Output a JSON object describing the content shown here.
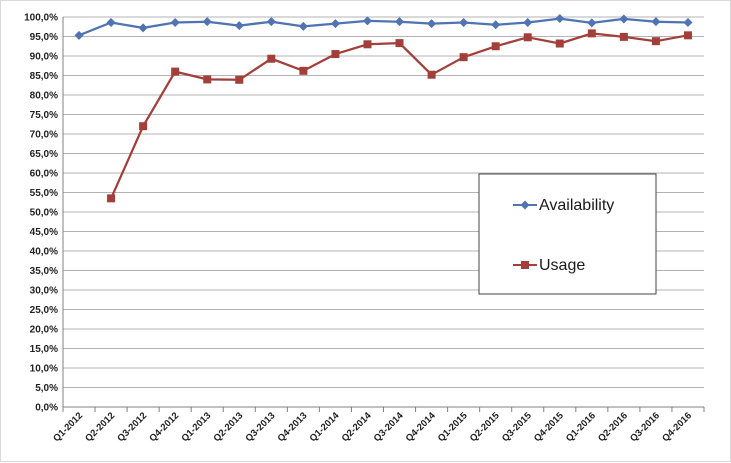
{
  "chart_data": {
    "type": "line",
    "title": "",
    "xlabel": "",
    "ylabel": "",
    "ylim": [
      0,
      100
    ],
    "y_tick_step": 5,
    "y_tick_labels": [
      "0,0%",
      "5,0%",
      "10,0%",
      "15,0%",
      "20,0%",
      "25,0%",
      "30,0%",
      "35,0%",
      "40,0%",
      "45,0%",
      "50,0%",
      "55,0%",
      "60,0%",
      "65,0%",
      "70,0%",
      "75,0%",
      "80,0%",
      "85,0%",
      "90,0%",
      "95,0%",
      "100,0%"
    ],
    "grid": true,
    "legend_position": "right, inside plot",
    "categories": [
      "Q1-2012",
      "Q2-2012",
      "Q3-2012",
      "Q4-2012",
      "Q1-2013",
      "Q2-2013",
      "Q3-2013",
      "Q4-2013",
      "Q1-2014",
      "Q2-2014",
      "Q3-2014",
      "Q4-2014",
      "Q1-2015",
      "Q2-2015",
      "Q3-2015",
      "Q4-2015",
      "Q1-2016",
      "Q2-2016",
      "Q3-2016",
      "Q4-2016"
    ],
    "series": [
      {
        "name": "Availability",
        "color": "#4f73b3",
        "marker": "diamond",
        "values": [
          95.3,
          98.6,
          97.2,
          98.6,
          98.8,
          97.8,
          98.8,
          97.6,
          98.3,
          99.0,
          98.8,
          98.3,
          98.6,
          98.0,
          98.6,
          99.6,
          98.5,
          99.5,
          98.8,
          98.6
        ]
      },
      {
        "name": "Usage",
        "color": "#a33f3b",
        "marker": "square",
        "values": [
          null,
          53.5,
          72.0,
          86.0,
          84.0,
          83.9,
          89.3,
          86.2,
          90.5,
          93.0,
          93.3,
          85.2,
          89.7,
          92.5,
          94.8,
          93.2,
          95.8,
          94.9,
          93.8,
          95.3
        ]
      }
    ]
  }
}
